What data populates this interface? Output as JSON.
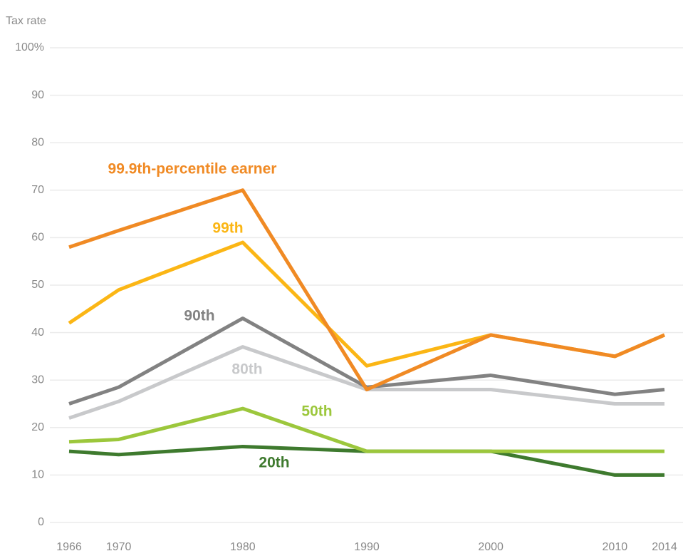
{
  "chart_data": {
    "type": "line",
    "y_label": "Tax rate",
    "x": [
      1966,
      1970,
      1980,
      1990,
      2000,
      2010,
      2014
    ],
    "xlim": [
      1966,
      2014
    ],
    "xticks": [
      1966,
      1970,
      1980,
      1990,
      2000,
      2010,
      2014
    ],
    "ylim": [
      0,
      100
    ],
    "yticks": [
      0,
      10,
      20,
      30,
      40,
      50,
      60,
      70,
      80,
      90,
      {
        "value": 100,
        "label": "100%"
      }
    ],
    "grid": true,
    "series": [
      {
        "name": "20th",
        "color": "#3e7a2e",
        "values": [
          15,
          14.3,
          16,
          15,
          15,
          10,
          10
        ]
      },
      {
        "name": "50th",
        "color": "#9cc73c",
        "values": [
          17,
          17.5,
          24,
          15,
          15,
          15,
          15
        ]
      },
      {
        "name": "80th",
        "color": "#c8c9cb",
        "values": [
          22,
          25.5,
          37,
          28,
          28,
          25,
          25
        ]
      },
      {
        "name": "90th",
        "color": "#828282",
        "values": [
          25,
          28.5,
          43,
          28.5,
          31,
          27,
          28
        ]
      },
      {
        "name": "99th",
        "color": "#fbb615",
        "values": [
          42,
          49,
          59,
          33,
          39.5,
          35,
          39.5
        ]
      },
      {
        "name": "99.9th-percentile earner",
        "color": "#f08a24",
        "values": [
          58,
          61.5,
          70,
          28,
          39.5,
          35,
          39.5
        ]
      }
    ]
  }
}
